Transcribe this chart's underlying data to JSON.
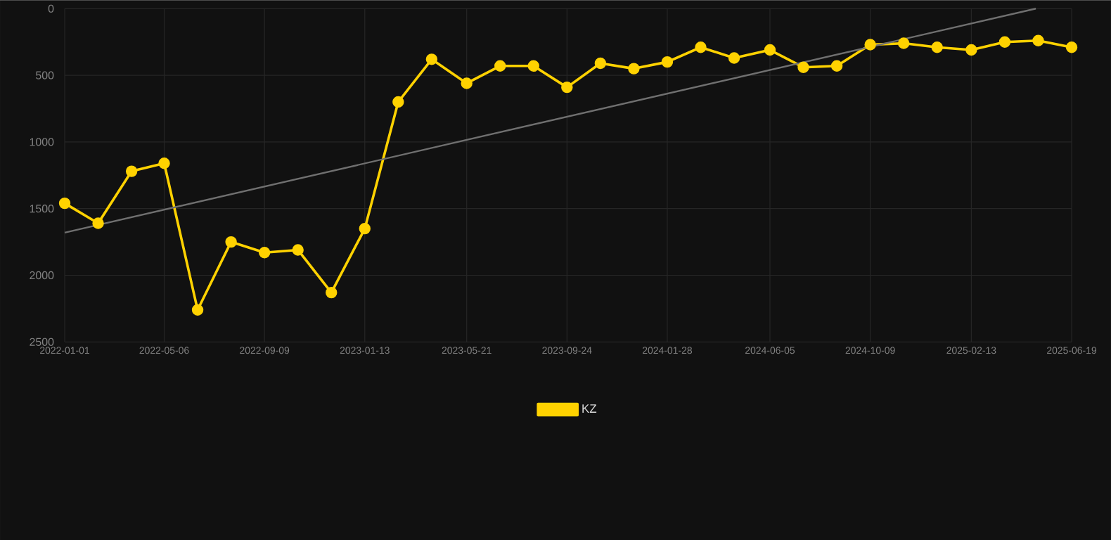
{
  "chart_data": {
    "type": "line",
    "x": [
      "2022-01-01",
      "2022-02-12",
      "2022-03-26",
      "2022-05-06",
      "2022-06-17",
      "2022-07-29",
      "2022-09-09",
      "2022-10-21",
      "2022-12-02",
      "2023-01-13",
      "2023-02-24",
      "2023-04-07",
      "2023-05-21",
      "2023-07-02",
      "2023-08-13",
      "2023-09-24",
      "2023-11-05",
      "2023-12-17",
      "2024-01-28",
      "2024-03-10",
      "2024-04-21",
      "2024-06-05",
      "2024-07-17",
      "2024-08-28",
      "2024-10-09",
      "2024-11-20",
      "2025-01-01",
      "2025-02-13",
      "2025-03-27",
      "2025-05-08",
      "2025-06-19"
    ],
    "series": [
      {
        "name": "KZ",
        "color": "#ffd200",
        "values": [
          1460,
          1610,
          1220,
          1160,
          2260,
          1750,
          1830,
          1810,
          2130,
          1650,
          700,
          380,
          560,
          430,
          430,
          590,
          410,
          450,
          400,
          290,
          370,
          310,
          440,
          430,
          270,
          260,
          290,
          310,
          250,
          240,
          290
        ]
      },
      {
        "type": "line",
        "color": "#707070",
        "marker": "none",
        "x": [
          "2022-01-01",
          "2025-05-05"
        ],
        "values": [
          1680,
          0
        ]
      }
    ],
    "xlim": [
      "2022-01-01",
      "2025-06-19"
    ],
    "xticks": [
      "2022-01-01",
      "2022-05-06",
      "2022-09-09",
      "2023-01-13",
      "2023-05-21",
      "2023-09-24",
      "2024-01-28",
      "2024-06-05",
      "2024-10-09",
      "2025-02-13",
      "2025-06-19"
    ],
    "ylim": [
      2500,
      0
    ],
    "yticks": [
      0,
      500,
      1000,
      1500,
      2000,
      2500
    ],
    "grid": true,
    "legend": "bottom",
    "marker": "circle",
    "line_style": "solid"
  }
}
